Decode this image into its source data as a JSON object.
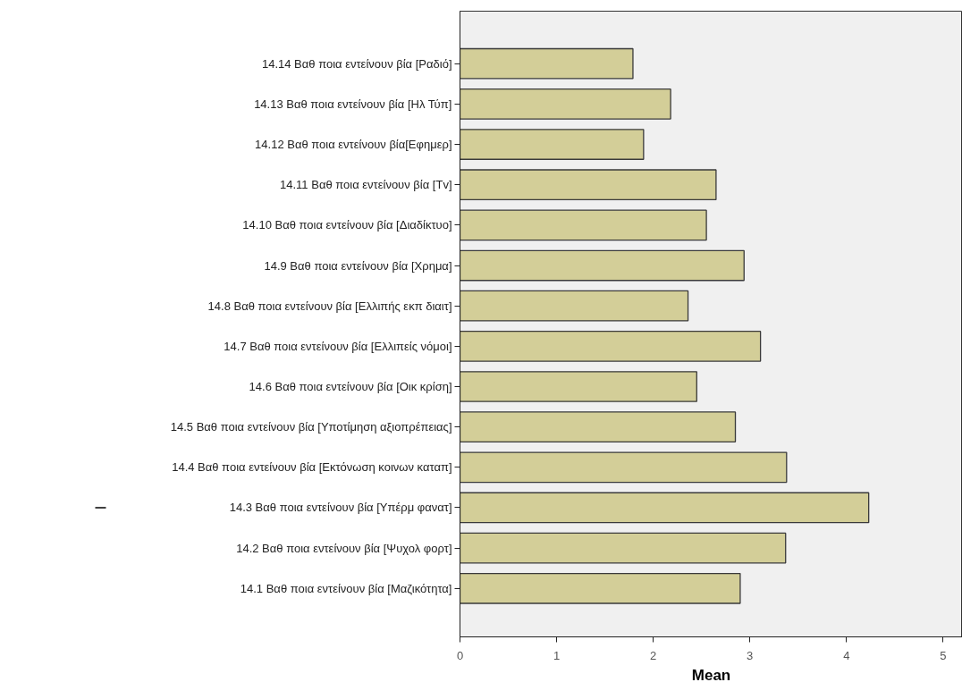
{
  "chart_data": {
    "type": "bar",
    "orientation": "horizontal",
    "xlabel": "Mean",
    "categories": [
      "14.14 Βαθ ποια εντείνουν βία [Ραδιό]",
      "14.13 Βαθ ποια εντείνουν βία [Ηλ Τύπ]",
      "14.12 Βαθ ποια εντείνουν βία[Εφημερ]",
      "14.11 Βαθ ποια εντείνουν βία [Τv]",
      "14.10 Βαθ ποια εντείνουν βία [Διαδίκτυο]",
      "14.9 Βαθ ποια εντείνουν βία [Χρημα]",
      "14.8 Βαθ ποια εντείνουν βία [Ελλιπής εκπ διαιτ]",
      "14.7 Βαθ ποια εντείνουν βία [Ελλιπείς νόμοι]",
      "14.6 Βαθ ποια εντείνουν βία [Οικ κρίση]",
      "14.5 Βαθ ποια εντείνουν βία [Υποτίμηση αξιοπρέπειας]",
      "14.4 Βαθ ποια εντείνουν βία [Εκτόνωση κοινων καταπ]",
      "14.3 Βαθ ποια εντείνουν βία [Υπέρμ φανατ]",
      "14.2 Βαθ ποια εντείνουν βία [Ψυχολ φορτ]",
      "14.1 Βαθ ποια εντείνουν βία [Μαζικότητα]"
    ],
    "values": [
      1.79,
      2.18,
      1.9,
      2.65,
      2.55,
      2.94,
      2.36,
      3.11,
      2.45,
      2.85,
      3.38,
      4.23,
      3.37,
      2.9
    ],
    "color": "#d3ce98",
    "xlim": [
      0,
      5.2
    ],
    "xticks": [
      0,
      1,
      2,
      3,
      4,
      5
    ],
    "grid": false
  }
}
